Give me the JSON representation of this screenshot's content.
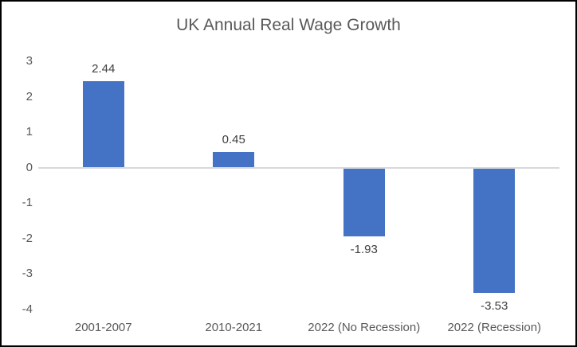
{
  "chart_data": {
    "type": "bar",
    "title": "UK Annual Real Wage Growth",
    "categories": [
      "2001-2007",
      "2010-2021",
      "2022 (No Recession)",
      "2022 (Recession)"
    ],
    "values": [
      2.44,
      0.45,
      -1.93,
      -3.53
    ],
    "data_labels": [
      "2.44",
      "0.45",
      "-1.93",
      "-3.53"
    ],
    "y_ticks": [
      3,
      2,
      1,
      0,
      -1,
      -2,
      -3,
      -4
    ],
    "ylim": [
      -4,
      3
    ],
    "xlabel": "",
    "ylabel": "",
    "grid": false,
    "legend": false,
    "colors": {
      "bar": "#4472C4",
      "axis_line": "#D9D9D9",
      "axis_text": "#595959",
      "title_text": "#595959",
      "data_label_text": "#404040",
      "frame_border": "#000000",
      "background": "#FFFFFF"
    }
  }
}
